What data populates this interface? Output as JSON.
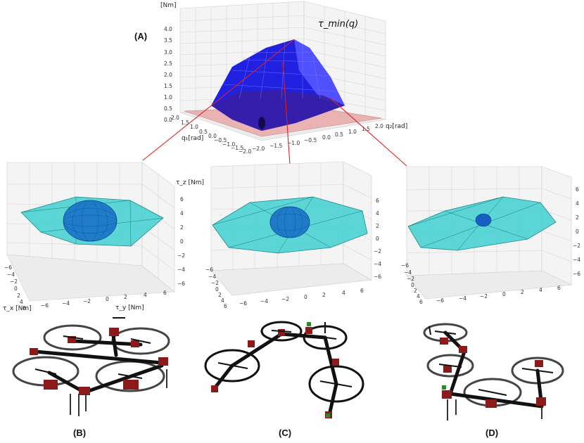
{
  "panels": {
    "A": {
      "label": "(A)",
      "title": "τ_min(q)",
      "unit_label": "[Nm]",
      "z_ticks": [
        "4.0",
        "3.5",
        "3.0",
        "2.5",
        "2.0",
        "1.5",
        "1.0",
        "0.5",
        "0.0"
      ],
      "q1_ticks": [
        "2.0",
        "1.5",
        "1.0",
        "0.5",
        "0.0",
        "−0.5",
        "−1.0",
        "−1.5",
        "−2.0"
      ],
      "q2_ticks": [
        "−2.0",
        "−1.5",
        "−1.0",
        "−0.5",
        "0.0",
        "0.5",
        "1.0",
        "1.5",
        "2.0"
      ],
      "q1_label": "q₁[rad]",
      "q2_label": "q₂[rad]"
    },
    "B": {
      "label": "(B)",
      "tz_label": "τ_z [Nm]",
      "tx_label": "τ_x [Nm]",
      "ty_label": "τ_y [Nm]",
      "z_ticks": [
        "6",
        "4",
        "2",
        "0",
        "−2",
        "−4",
        "−6"
      ],
      "x_ticks": [
        "−6",
        "−4",
        "−2",
        "0",
        "2",
        "4",
        "6"
      ],
      "y_ticks": [
        "−6",
        "−4",
        "−2",
        "0",
        "2",
        "4",
        "6"
      ]
    },
    "C": {
      "label": "(C)",
      "z_ticks": [
        "6",
        "4",
        "2",
        "0",
        "−2",
        "−4",
        "−6"
      ],
      "x_ticks": [
        "−6",
        "−4",
        "−2",
        "0",
        "2",
        "4",
        "6"
      ],
      "y_ticks": [
        "−6",
        "−4",
        "−2",
        "0",
        "2",
        "4",
        "6"
      ]
    },
    "D": {
      "label": "(D)",
      "z_ticks": [
        "6",
        "4",
        "2",
        "0",
        "−2",
        "−4",
        "−6"
      ],
      "x_ticks": [
        "−6",
        "−4",
        "−2",
        "0",
        "2",
        "4",
        "6"
      ],
      "y_ticks": [
        "−6",
        "−4",
        "−2",
        "0",
        "2",
        "4",
        "6"
      ]
    }
  }
}
